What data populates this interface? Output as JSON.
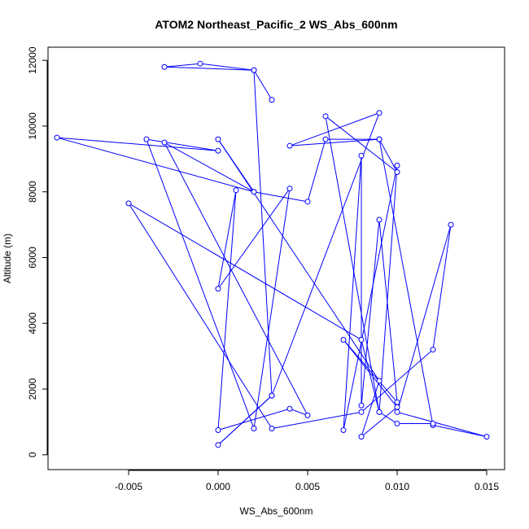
{
  "chart_data": {
    "type": "line",
    "title": "ATOM2 Northeast_Pacific_2 WS_Abs_600nm",
    "xlabel": "WS_Abs_600nm",
    "ylabel": "Altitude (m)",
    "xlim": [
      -0.0095,
      0.016
    ],
    "ylim": [
      -450,
      12400
    ],
    "xticks": [
      -0.005,
      0.0,
      0.005,
      0.01,
      0.015
    ],
    "xtick_labels": [
      "-0.005",
      "0.000",
      "0.005",
      "0.010",
      "0.015"
    ],
    "yticks": [
      0,
      2000,
      4000,
      6000,
      8000,
      10000,
      12000
    ],
    "ytick_labels": [
      "0",
      "2000",
      "4000",
      "6000",
      "8000",
      "10000",
      "12000"
    ],
    "series": [
      {
        "color": "#0000ff",
        "marker": "open-circle",
        "x": [
          0.003,
          0.002,
          -0.003,
          -0.001,
          0.002,
          0.003,
          0.0,
          0.003,
          0.009,
          0.004,
          0.009,
          0.01,
          0.006,
          0.009,
          0.01,
          0.007,
          0.008,
          0.008,
          0.009,
          0.01,
          0.007,
          0.01,
          0.008,
          0.009,
          0.0,
          0.002,
          -0.003,
          0.005,
          0.004,
          0.0,
          0.001,
          0.0,
          0.004,
          0.002,
          -0.004,
          0.0,
          -0.009,
          0.002,
          0.005,
          0.006,
          0.009,
          0.012,
          0.015,
          0.01,
          0.013,
          0.012,
          0.008,
          0.003,
          -0.005,
          0.008,
          0.009,
          0.01,
          0.012
        ],
        "y": [
          10800,
          11700,
          11800,
          11900,
          11700,
          1800,
          300,
          1800,
          10400,
          9400,
          9600,
          8600,
          10300,
          1300,
          8800,
          750,
          9100,
          1500,
          7150,
          1600,
          3500,
          1450,
          550,
          2250,
          9600,
          8000,
          9500,
          1200,
          1400,
          750,
          8050,
          5050,
          8100,
          800,
          9600,
          9250,
          9650,
          8000,
          7700,
          9600,
          9600,
          900,
          550,
          1300,
          7000,
          3200,
          1300,
          800,
          7650,
          3500,
          1300,
          950,
          950
        ]
      }
    ]
  }
}
